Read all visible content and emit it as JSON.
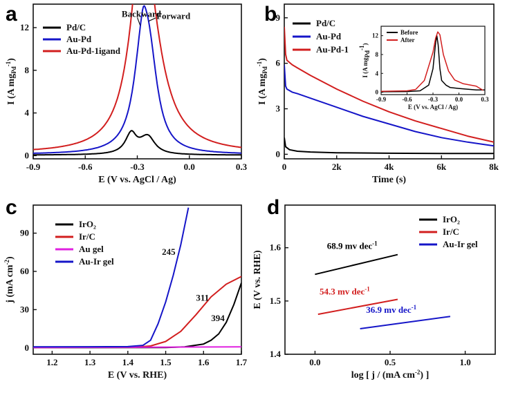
{
  "panels": [
    {
      "id": "a",
      "letter": "a",
      "type": "line",
      "xlabel": "E (V vs. AgCl / Ag)",
      "ylabel": "I (A mg_Pd^-1)",
      "xlim": [
        -0.9,
        0.3
      ],
      "ylim": [
        -0.3,
        14.2
      ],
      "xticks": [
        -0.9,
        -0.6,
        -0.3,
        0.0,
        0.3
      ],
      "xticklabels": [
        "-0.9",
        "-0.6",
        "-0.3",
        "0.0",
        "0.3"
      ],
      "yticks": [
        0,
        4,
        8,
        12
      ],
      "yticklabels": [
        "0",
        "4",
        "8",
        "12"
      ],
      "legend": [
        {
          "label": "Pd/C",
          "color": "#000000"
        },
        {
          "label": "Au-Pd",
          "color": "#1515c8"
        },
        {
          "label": "Au-Pd-1igand",
          "color": "#d21e1e"
        }
      ],
      "annotations": [
        {
          "text": "Backward",
          "x": -0.39,
          "y": 13.0
        },
        {
          "text": "Forward",
          "x": -0.19,
          "y": 12.8
        }
      ],
      "series": [
        {
          "name": "Pd/C",
          "color": "#000000",
          "peaks": [
            {
              "x": -0.335,
              "h": 1.8,
              "wl": 0.04,
              "wr": 0.035
            },
            {
              "x": -0.24,
              "h": 1.7,
              "wl": 0.06,
              "wr": 0.05
            }
          ],
          "floor": 0.05
        },
        {
          "name": "Au-Pd",
          "color": "#1515c8",
          "peaks": [
            {
              "x": -0.27,
              "h": 8.4,
              "wl": 0.06,
              "wr": 0.035
            },
            {
              "x": -0.23,
              "h": 8.4,
              "wl": 0.05,
              "wr": 0.06
            }
          ],
          "floor": 0.1
        },
        {
          "name": "Au-Pd-1igand",
          "color": "#d21e1e",
          "peaks": [
            {
              "x": -0.275,
              "h": 12.7,
              "wl": 0.09,
              "wr": 0.04
            },
            {
              "x": -0.245,
              "h": 13.0,
              "wl": 0.06,
              "wr": 0.11
            }
          ],
          "floor": 0.2
        }
      ]
    },
    {
      "id": "b",
      "letter": "b",
      "type": "line",
      "xlabel": "Time (s)",
      "ylabel": "I (A mg_Pd^-1)",
      "xlim": [
        0,
        8000
      ],
      "ylim": [
        -0.3,
        9.9
      ],
      "xticks": [
        0,
        2000,
        4000,
        6000,
        8000
      ],
      "xticklabels": [
        "0",
        "2k",
        "4k",
        "6k",
        "8k"
      ],
      "yticks": [
        0,
        3,
        6,
        9
      ],
      "yticklabels": [
        "0",
        "3",
        "6",
        "9"
      ],
      "legend": [
        {
          "label": "Pd/C",
          "color": "#000000"
        },
        {
          "label": "Au-Pd",
          "color": "#1515c8"
        },
        {
          "label": "Au-Pd-1",
          "color": "#d21e1e"
        }
      ],
      "series": [
        {
          "name": "Pd/C",
          "color": "#000000",
          "points": [
            [
              0,
              1.1
            ],
            [
              50,
              0.5
            ],
            [
              200,
              0.3
            ],
            [
              500,
              0.2
            ],
            [
              1000,
              0.15
            ],
            [
              2000,
              0.1
            ],
            [
              4000,
              0.07
            ],
            [
              6000,
              0.05
            ],
            [
              8000,
              0.05
            ]
          ]
        },
        {
          "name": "Au-Pd",
          "color": "#1515c8",
          "points": [
            [
              0,
              5.9
            ],
            [
              50,
              4.5
            ],
            [
              100,
              4.3
            ],
            [
              300,
              4.1
            ],
            [
              500,
              4.0
            ],
            [
              1000,
              3.7
            ],
            [
              2000,
              3.1
            ],
            [
              3000,
              2.5
            ],
            [
              4000,
              2.0
            ],
            [
              5000,
              1.5
            ],
            [
              6000,
              1.1
            ],
            [
              7000,
              0.8
            ],
            [
              8000,
              0.55
            ]
          ]
        },
        {
          "name": "Au-Pd-1",
          "color": "#d21e1e",
          "points": [
            [
              0,
              8.4
            ],
            [
              50,
              6.6
            ],
            [
              100,
              6.2
            ],
            [
              300,
              5.9
            ],
            [
              500,
              5.7
            ],
            [
              1000,
              5.2
            ],
            [
              2000,
              4.3
            ],
            [
              3000,
              3.5
            ],
            [
              4000,
              2.8
            ],
            [
              5000,
              2.2
            ],
            [
              6000,
              1.7
            ],
            [
              7000,
              1.2
            ],
            [
              8000,
              0.8
            ]
          ]
        }
      ],
      "inset": {
        "xlabel": "E (V vs. AgCl / Ag)",
        "ylabel": "I (A mg_Pd^-1)",
        "xlim": [
          -0.9,
          0.3
        ],
        "ylim": [
          -0.5,
          14.0
        ],
        "xticks": [
          -0.9,
          -0.6,
          -0.3,
          0.0,
          0.3
        ],
        "xticklabels": [
          "-0.9",
          "-0.6",
          "-0.3",
          "0.0",
          "0.3"
        ],
        "yticks": [
          0,
          4,
          8,
          12
        ],
        "yticklabels": [
          "0",
          "4",
          "8",
          "12"
        ],
        "legend": [
          {
            "label": "Before",
            "color": "#000000"
          },
          {
            "label": "After",
            "color": "#d21e1e"
          }
        ],
        "series": [
          {
            "name": "Before",
            "color": "#000000",
            "points": [
              [
                -0.9,
                0.1
              ],
              [
                -0.6,
                0.15
              ],
              [
                -0.45,
                0.3
              ],
              [
                -0.35,
                1.5
              ],
              [
                -0.3,
                5.0
              ],
              [
                -0.27,
                10.5
              ],
              [
                -0.255,
                12.0
              ],
              [
                -0.24,
                10.0
              ],
              [
                -0.22,
                5.0
              ],
              [
                -0.2,
                2.5
              ],
              [
                -0.15,
                1.5
              ],
              [
                -0.1,
                1.0
              ],
              [
                0.0,
                0.8
              ],
              [
                0.2,
                0.5
              ],
              [
                0.3,
                0.5
              ]
            ]
          },
          {
            "name": "After",
            "color": "#d21e1e",
            "points": [
              [
                -0.9,
                0.2
              ],
              [
                -0.6,
                0.3
              ],
              [
                -0.5,
                0.6
              ],
              [
                -0.4,
                2.5
              ],
              [
                -0.3,
                8.5
              ],
              [
                -0.27,
                11.5
              ],
              [
                -0.245,
                12.8
              ],
              [
                -0.22,
                12.2
              ],
              [
                -0.18,
                8.0
              ],
              [
                -0.12,
                4.5
              ],
              [
                -0.05,
                2.6
              ],
              [
                0.05,
                1.8
              ],
              [
                0.2,
                1.3
              ],
              [
                0.28,
                0.4
              ]
            ]
          }
        ]
      }
    },
    {
      "id": "c",
      "letter": "c",
      "type": "line",
      "xlabel": "E (V vs. RHE)",
      "ylabel": "j (mA cm^-2)",
      "xlim": [
        1.15,
        1.7
      ],
      "ylim": [
        -5,
        112
      ],
      "xticks": [
        1.2,
        1.3,
        1.4,
        1.5,
        1.6,
        1.7
      ],
      "xticklabels": [
        "1.2",
        "1.3",
        "1.4",
        "1.5",
        "1.6",
        "1.7"
      ],
      "yticks": [
        0,
        30,
        60,
        90
      ],
      "yticklabels": [
        "0",
        "30",
        "60",
        "90"
      ],
      "legend": [
        {
          "label": "IrO₂",
          "color": "#000000"
        },
        {
          "label": "Ir/C",
          "color": "#d21e1e"
        },
        {
          "label": "Au gel",
          "color": "#e020e0"
        },
        {
          "label": "Au-Ir gel",
          "color": "#1515c8"
        }
      ],
      "annotations": [
        {
          "text": "245",
          "x": 1.49,
          "y": 73
        },
        {
          "text": "311",
          "x": 1.58,
          "y": 37
        },
        {
          "text": "394",
          "x": 1.62,
          "y": 21
        }
      ],
      "series": [
        {
          "name": "IrO₂",
          "color": "#000000",
          "points": [
            [
              1.15,
              0.2
            ],
            [
              1.5,
              0.3
            ],
            [
              1.55,
              0.8
            ],
            [
              1.6,
              3.0
            ],
            [
              1.62,
              6.0
            ],
            [
              1.64,
              11.0
            ],
            [
              1.66,
              20.0
            ],
            [
              1.68,
              34.0
            ],
            [
              1.7,
              51.0
            ]
          ]
        },
        {
          "name": "Ir/C",
          "color": "#d21e1e",
          "points": [
            [
              1.15,
              0.3
            ],
            [
              1.42,
              0.5
            ],
            [
              1.46,
              1.5
            ],
            [
              1.5,
              5.0
            ],
            [
              1.54,
              13.0
            ],
            [
              1.58,
              26.0
            ],
            [
              1.62,
              40.0
            ],
            [
              1.66,
              50.0
            ],
            [
              1.7,
              56.0
            ]
          ]
        },
        {
          "name": "Au gel",
          "color": "#e020e0",
          "points": [
            [
              1.15,
              0.3
            ],
            [
              1.7,
              0.8
            ]
          ]
        },
        {
          "name": "Au-Ir gel",
          "color": "#1515c8",
          "points": [
            [
              1.15,
              0.8
            ],
            [
              1.4,
              1.0
            ],
            [
              1.44,
              2.0
            ],
            [
              1.46,
              6.0
            ],
            [
              1.48,
              19.0
            ],
            [
              1.5,
              36.0
            ],
            [
              1.52,
              57.0
            ],
            [
              1.54,
              81.0
            ],
            [
              1.56,
              110.0
            ]
          ]
        }
      ]
    },
    {
      "id": "d",
      "letter": "d",
      "type": "line",
      "xlabel": "log [ j / (mA cm^-2) ]",
      "ylabel": "E (V vs. RHE)",
      "xlim": [
        -0.2,
        1.2
      ],
      "ylim": [
        1.4,
        1.68
      ],
      "xticks": [
        0.0,
        0.5,
        1.0
      ],
      "xticklabels": [
        "0.0",
        "0.5",
        "1.0"
      ],
      "yticks": [
        1.4,
        1.5,
        1.6
      ],
      "yticklabels": [
        "1.4",
        "1.5",
        "1.6"
      ],
      "legend": [
        {
          "label": "IrO₂",
          "color": "#000000"
        },
        {
          "label": "Ir/C",
          "color": "#d21e1e"
        },
        {
          "label": "Au-Ir gel",
          "color": "#1515c8"
        }
      ],
      "annotations": [
        {
          "text": "68.9 mv dec^-1",
          "x": 0.08,
          "y": 1.598,
          "color": "#000000"
        },
        {
          "text": "54.3 mv dec^-1",
          "x": 0.03,
          "y": 1.512,
          "color": "#d21e1e"
        },
        {
          "text": "36.9 mv dec^-1",
          "x": 0.34,
          "y": 1.478,
          "color": "#1515c8"
        }
      ],
      "series": [
        {
          "name": "IrO₂",
          "color": "#000000",
          "points": [
            [
              0.0,
              1.55
            ],
            [
              0.55,
              1.587
            ]
          ]
        },
        {
          "name": "Ir/C",
          "color": "#d21e1e",
          "points": [
            [
              0.02,
              1.475
            ],
            [
              0.55,
              1.503
            ]
          ]
        },
        {
          "name": "Au-Ir gel",
          "color": "#1515c8",
          "points": [
            [
              0.3,
              1.448
            ],
            [
              0.9,
              1.471
            ]
          ]
        }
      ]
    }
  ]
}
